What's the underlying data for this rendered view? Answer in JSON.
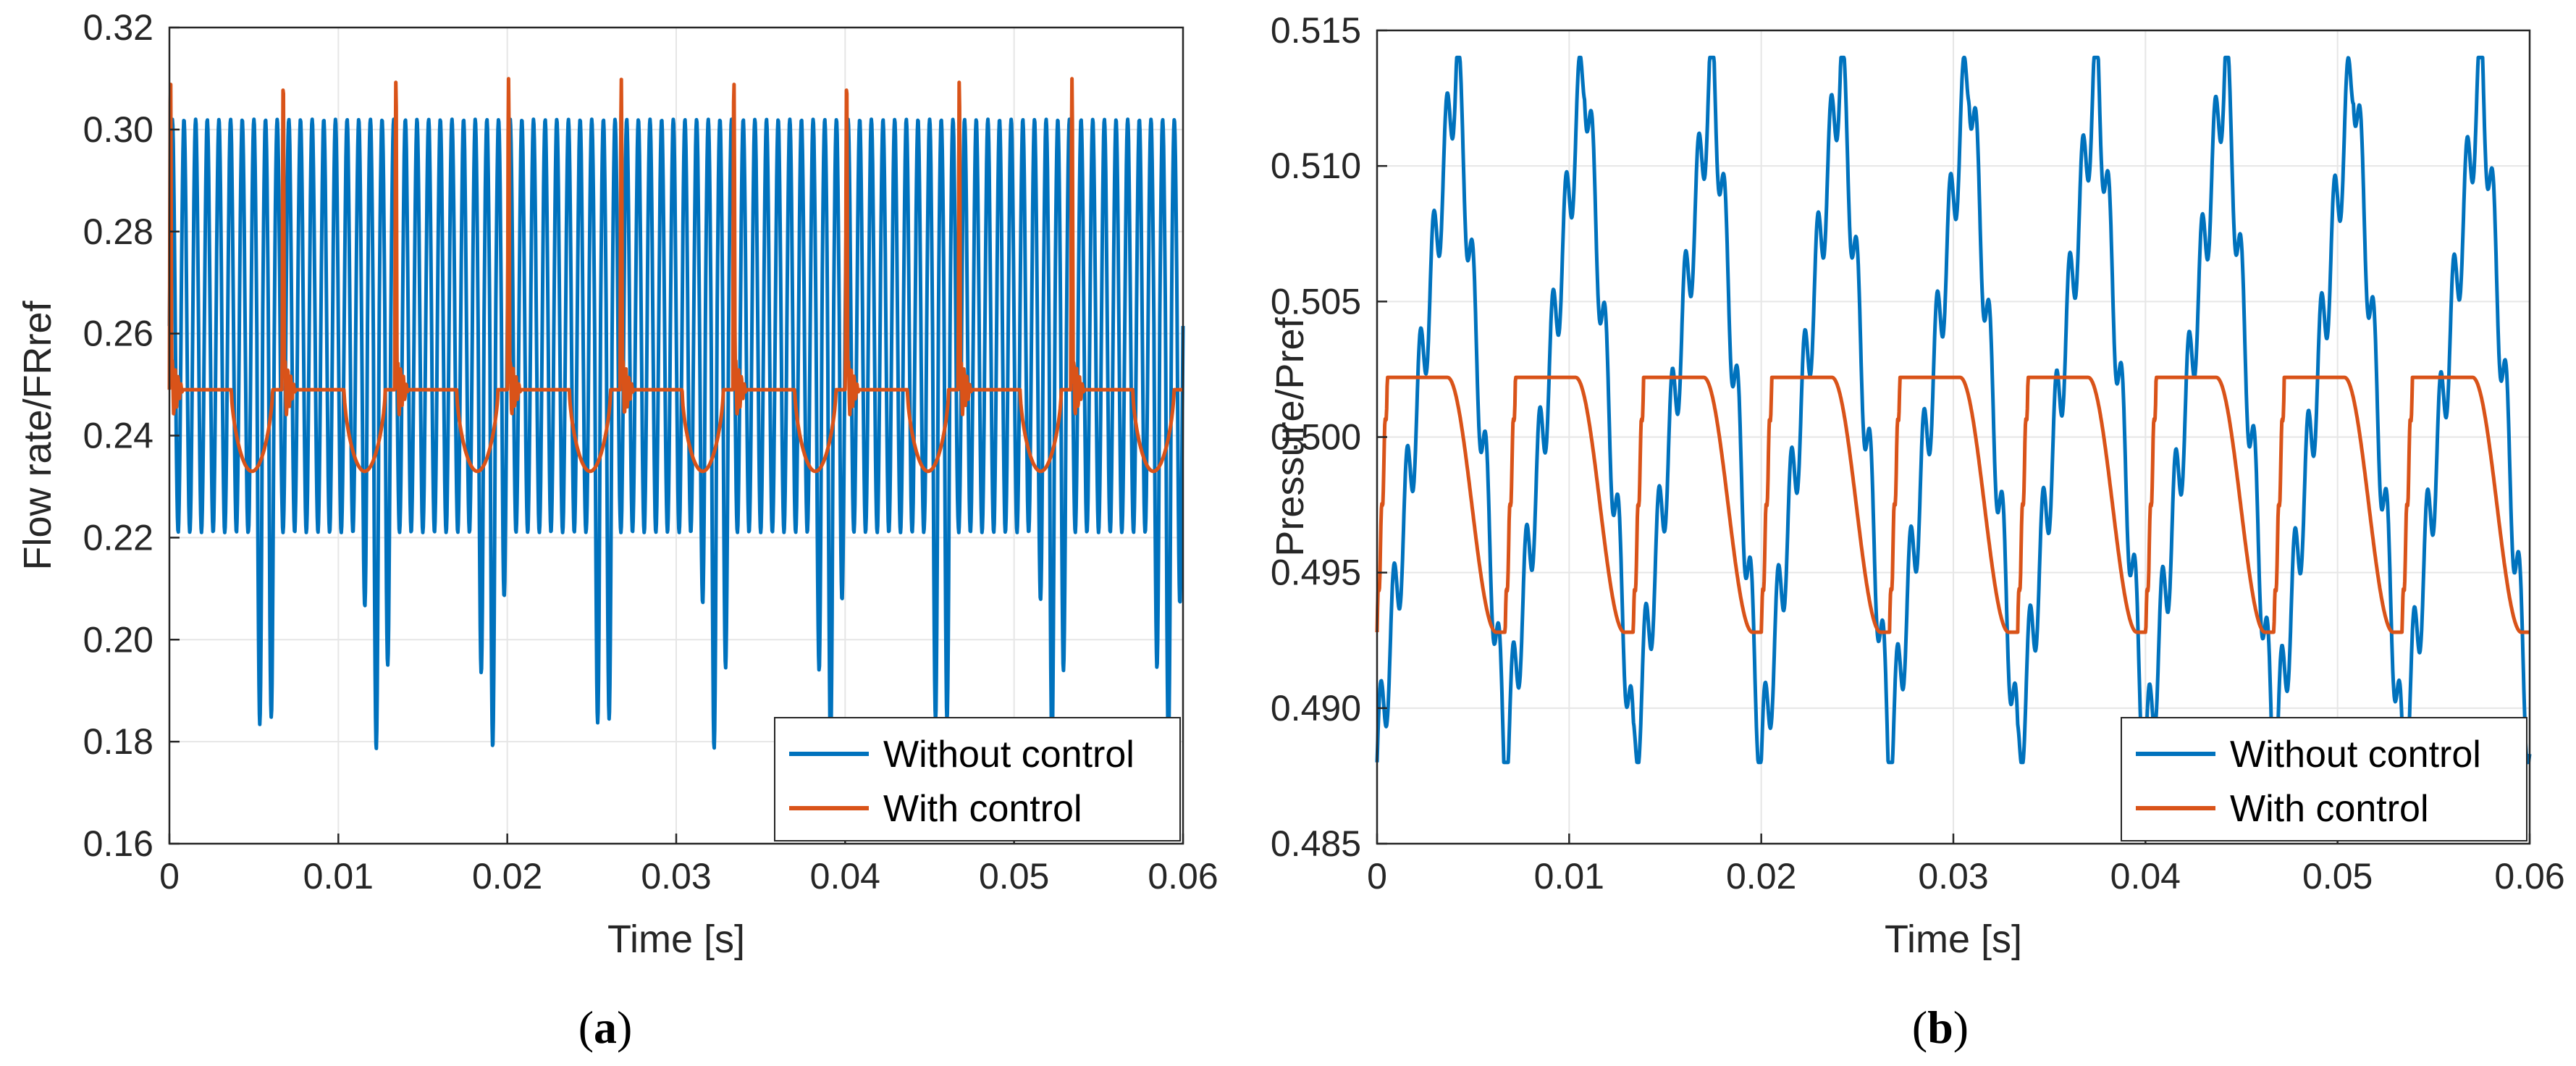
{
  "chart_data": [
    {
      "type": "line",
      "panel": "(a)",
      "caption_open": "(",
      "caption_letter": "a",
      "caption_close": ")",
      "xlabel": "Time [s]",
      "ylabel": "Flow rate/FRref",
      "xlim": [
        0,
        0.06
      ],
      "ylim": [
        0.16,
        0.32
      ],
      "xticks": [
        0,
        0.01,
        0.02,
        0.03,
        0.04,
        0.05,
        0.06
      ],
      "xtick_labels": [
        "0",
        "0.01",
        "0.02",
        "0.03",
        "0.04",
        "0.05",
        "0.06"
      ],
      "yticks": [
        0.16,
        0.18,
        0.2,
        0.22,
        0.24,
        0.26,
        0.28,
        0.3,
        0.32
      ],
      "ytick_labels": [
        "0.16",
        "0.18",
        "0.20",
        "0.22",
        "0.24",
        "0.26",
        "0.28",
        "0.30",
        "0.32"
      ],
      "grid": true,
      "legend_position": "bottom-right",
      "period_s": 0.00667,
      "series": [
        {
          "name": "Without control",
          "color": "#0072BD",
          "pattern": "high-frequency oscillation",
          "cycle_count": 9,
          "oscillation_frequency_hz": 1450,
          "upper_envelope": 0.302,
          "lower_envelope": 0.221,
          "dip_min": 0.178
        },
        {
          "name": "With control",
          "color": "#D95319",
          "pattern": "spike then plateau then dip",
          "cycle_count": 9,
          "baseline": 0.249,
          "plateau": 0.249,
          "spike_max": 0.31,
          "dip_min": 0.233
        }
      ]
    },
    {
      "type": "line",
      "panel": "(b)",
      "caption_open": "(",
      "caption_letter": "b",
      "caption_close": ")",
      "xlabel": "Time [s]",
      "ylabel": "Pressure/Pref",
      "xlim": [
        0,
        0.06
      ],
      "ylim": [
        0.485,
        0.515
      ],
      "xticks": [
        0,
        0.01,
        0.02,
        0.03,
        0.04,
        0.05,
        0.06
      ],
      "xtick_labels": [
        "0",
        "0.01",
        "0.02",
        "0.03",
        "0.04",
        "0.05",
        "0.06"
      ],
      "yticks": [
        0.485,
        0.49,
        0.495,
        0.5,
        0.505,
        0.51,
        0.515
      ],
      "ytick_labels": [
        "0.485",
        "0.490",
        "0.495",
        "0.500",
        "0.505",
        "0.510",
        "0.515"
      ],
      "grid": true,
      "legend_position": "bottom-right",
      "period_s": 0.00667,
      "series": [
        {
          "name": "Without control",
          "color": "#0072BD",
          "pattern": "sawtooth with ripple",
          "cycle_count": 9,
          "peak": 0.514,
          "trough": 0.488
        },
        {
          "name": "With control",
          "color": "#D95319",
          "pattern": "smooth plateau and trough",
          "cycle_count": 9,
          "plateau": 0.5022,
          "trough": 0.4928
        }
      ]
    }
  ]
}
